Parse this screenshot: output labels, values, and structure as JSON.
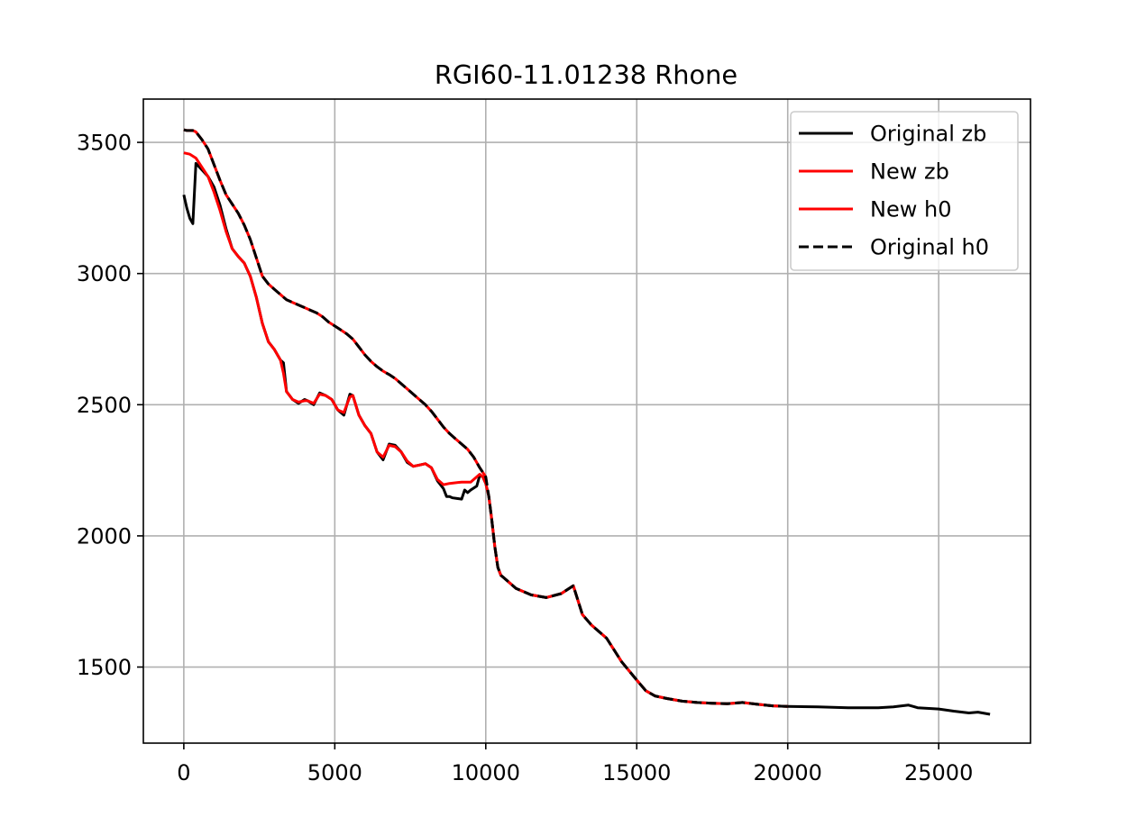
{
  "chart_data": {
    "type": "line",
    "title": "RGI60-11.01238 Rhone",
    "xlabel": "",
    "ylabel": "",
    "xlim": [
      -1340,
      28040
    ],
    "ylim": [
      1210,
      3665
    ],
    "xticks": [
      0,
      5000,
      10000,
      15000,
      20000,
      25000
    ],
    "yticks": [
      1500,
      2000,
      2500,
      3000,
      3500
    ],
    "grid": true,
    "legend_position": "upper right",
    "series": [
      {
        "name": "Original zb",
        "color": "#000000",
        "dash": "solid",
        "x": [
          0,
          100,
          200,
          300,
          400,
          600,
          800,
          1000,
          1200,
          1400,
          1600,
          1800,
          2000,
          2200,
          2400,
          2600,
          2800,
          3000,
          3200,
          3300,
          3400,
          3600,
          3800,
          4000,
          4100,
          4300,
          4500,
          4700,
          4900,
          5100,
          5300,
          5500,
          5600,
          5800,
          6000,
          6200,
          6400,
          6600,
          6800,
          7000,
          7200,
          7400,
          7600,
          7800,
          8000,
          8200,
          8400,
          8600,
          8700,
          8800,
          8900,
          9200,
          9300,
          9400,
          9500,
          9700,
          9800,
          9900,
          10000,
          10100,
          10200,
          10300,
          10400,
          10500,
          10600,
          10700,
          11000,
          11500,
          12000,
          12500,
          12900,
          13200,
          13500,
          14000,
          14500,
          15000,
          15300,
          15600,
          16000,
          16500,
          17000,
          17500,
          18000,
          18500,
          19000,
          19500,
          20000,
          21000,
          22000,
          23000,
          23500,
          24000,
          24300,
          25000,
          25500,
          26000,
          26300,
          26700
        ],
        "y": [
          3300,
          3250,
          3210,
          3190,
          3420,
          3395,
          3370,
          3330,
          3260,
          3170,
          3095,
          3065,
          3040,
          2990,
          2910,
          2810,
          2740,
          2710,
          2670,
          2660,
          2550,
          2520,
          2505,
          2520,
          2515,
          2500,
          2545,
          2535,
          2520,
          2480,
          2460,
          2540,
          2535,
          2460,
          2420,
          2390,
          2320,
          2290,
          2350,
          2345,
          2320,
          2280,
          2265,
          2270,
          2275,
          2260,
          2210,
          2180,
          2150,
          2150,
          2145,
          2140,
          2175,
          2165,
          2175,
          2190,
          2230,
          2225,
          2200,
          2150,
          2060,
          1960,
          1880,
          1850,
          1840,
          1830,
          1800,
          1775,
          1765,
          1780,
          1810,
          1700,
          1660,
          1610,
          1520,
          1450,
          1410,
          1390,
          1380,
          1370,
          1365,
          1362,
          1360,
          1365,
          1358,
          1352,
          1350,
          1348,
          1345,
          1345,
          1348,
          1355,
          1345,
          1340,
          1332,
          1325,
          1328,
          1320
        ]
      },
      {
        "name": "New zb",
        "color": "#ff0000",
        "dash": "solid",
        "x": [
          0,
          200,
          400,
          600,
          800,
          1000,
          1200,
          1400,
          1600,
          1800,
          2000,
          2200,
          2400,
          2600,
          2800,
          3000,
          3200,
          3300,
          3400,
          3600,
          3800,
          4000,
          4100,
          4300,
          4500,
          4700,
          4900,
          5100,
          5300,
          5500,
          5600,
          5800,
          6000,
          6200,
          6400,
          6600,
          6800,
          7000,
          7200,
          7400,
          7600,
          7800,
          8000,
          8200,
          8400,
          8600,
          8800,
          9200,
          9500,
          9700,
          9800,
          9900,
          10000,
          10100,
          10200,
          10300,
          10400,
          10500,
          10600,
          10700,
          11000,
          11500,
          12000,
          12500,
          12900,
          13200,
          13500,
          14000,
          14500,
          15000,
          15300,
          15600,
          16000,
          16500,
          17000,
          17500,
          18000,
          18500,
          19000,
          19500,
          20000
        ],
        "y": [
          3460,
          3455,
          3440,
          3405,
          3370,
          3310,
          3240,
          3160,
          3095,
          3065,
          3040,
          2990,
          2910,
          2810,
          2740,
          2710,
          2670,
          2620,
          2550,
          2520,
          2510,
          2515,
          2515,
          2505,
          2540,
          2535,
          2520,
          2480,
          2470,
          2530,
          2535,
          2460,
          2420,
          2390,
          2320,
          2300,
          2345,
          2340,
          2320,
          2285,
          2265,
          2270,
          2275,
          2260,
          2215,
          2195,
          2200,
          2205,
          2205,
          2225,
          2235,
          2225,
          2200,
          2150,
          2060,
          1960,
          1880,
          1850,
          1840,
          1830,
          1800,
          1775,
          1765,
          1780,
          1810,
          1700,
          1660,
          1610,
          1520,
          1450,
          1410,
          1390,
          1380,
          1370,
          1365,
          1362,
          1360,
          1365,
          1358,
          1352,
          1350
        ]
      },
      {
        "name": "New h0",
        "color": "#ff0000",
        "dash": "solid",
        "x": [
          0,
          100,
          300,
          400,
          600,
          800,
          1000,
          1200,
          1400,
          1600,
          1800,
          2000,
          2200,
          2400,
          2600,
          2800,
          3000,
          3200,
          3400,
          3600,
          3800,
          4000,
          4200,
          4400,
          4600,
          4800,
          5000,
          5200,
          5400,
          5600,
          5800,
          6000,
          6200,
          6400,
          6600,
          6800,
          7000,
          7200,
          7400,
          7600,
          7800,
          8000,
          8200,
          8400,
          8600,
          8800,
          9000,
          9200,
          9400,
          9600,
          9800,
          10000
        ],
        "y": [
          3548,
          3545,
          3545,
          3540,
          3510,
          3475,
          3415,
          3355,
          3300,
          3265,
          3230,
          3185,
          3130,
          3060,
          2990,
          2960,
          2940,
          2920,
          2900,
          2890,
          2880,
          2870,
          2860,
          2850,
          2835,
          2815,
          2800,
          2785,
          2770,
          2750,
          2720,
          2690,
          2665,
          2645,
          2628,
          2615,
          2600,
          2580,
          2560,
          2540,
          2520,
          2500,
          2475,
          2445,
          2415,
          2390,
          2370,
          2350,
          2330,
          2300,
          2260,
          2225
        ]
      },
      {
        "name": "Original h0",
        "color": "#000000",
        "dash": "dashed",
        "x": [
          0,
          100,
          300,
          400,
          600,
          800,
          1000,
          1200,
          1400,
          1600,
          1800,
          2000,
          2200,
          2400,
          2600,
          2800,
          3000,
          3200,
          3400,
          3600,
          3800,
          4000,
          4200,
          4400,
          4600,
          4800,
          5000,
          5200,
          5400,
          5600,
          5800,
          6000,
          6200,
          6400,
          6600,
          6800,
          7000,
          7200,
          7400,
          7600,
          7800,
          8000,
          8200,
          8400,
          8600,
          8800,
          9000,
          9200,
          9400,
          9600,
          9800,
          10000,
          10100,
          10200,
          10300,
          10400,
          10500,
          10600,
          10700,
          11000,
          11500,
          12000,
          12500,
          12900,
          13200,
          13500,
          14000,
          14500,
          15000,
          15300,
          15600,
          16000,
          16500,
          17000,
          17500,
          18000,
          18500,
          19000,
          19500,
          20000
        ],
        "y": [
          3548,
          3545,
          3545,
          3540,
          3510,
          3475,
          3415,
          3355,
          3300,
          3265,
          3230,
          3185,
          3130,
          3060,
          2990,
          2960,
          2940,
          2920,
          2900,
          2890,
          2880,
          2870,
          2860,
          2850,
          2835,
          2815,
          2800,
          2785,
          2770,
          2750,
          2720,
          2690,
          2665,
          2645,
          2628,
          2615,
          2600,
          2580,
          2560,
          2540,
          2520,
          2500,
          2475,
          2445,
          2415,
          2390,
          2370,
          2350,
          2330,
          2300,
          2260,
          2225,
          2150,
          2060,
          1960,
          1880,
          1850,
          1840,
          1830,
          1800,
          1775,
          1765,
          1780,
          1810,
          1700,
          1660,
          1610,
          1520,
          1450,
          1410,
          1390,
          1380,
          1370,
          1365,
          1362,
          1360,
          1365,
          1358,
          1352,
          1350
        ]
      }
    ]
  }
}
